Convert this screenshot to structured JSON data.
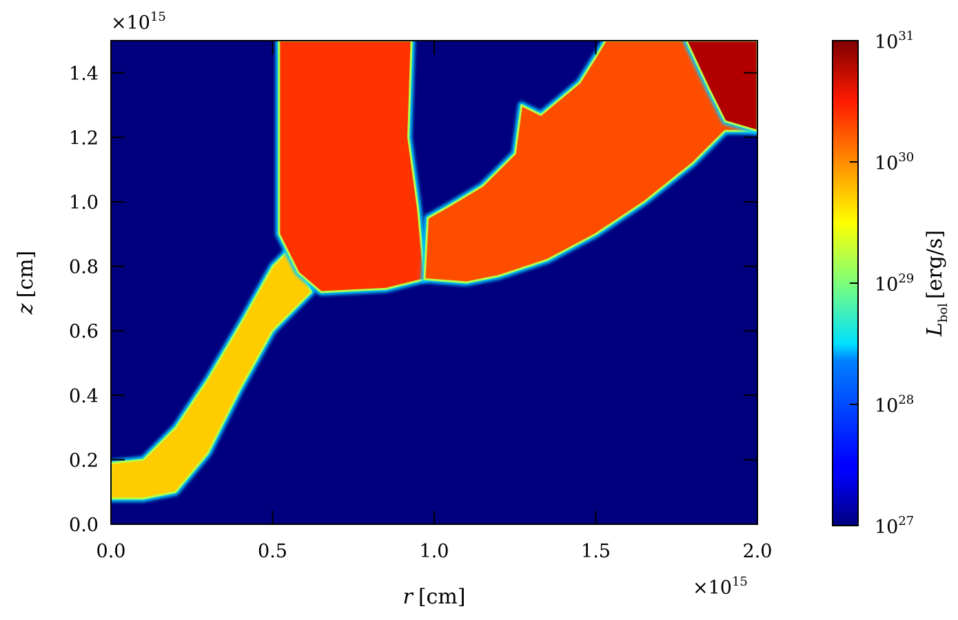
{
  "chart_data": {
    "type": "heatmap",
    "xlabel": {
      "var": "r",
      "unit": "[cm]"
    },
    "ylabel": {
      "var": "z",
      "unit": "[cm]"
    },
    "x_multiplier": {
      "base": "×10",
      "exp": "15"
    },
    "y_multiplier": {
      "base": "×10",
      "exp": "15"
    },
    "xlim": [
      0.0,
      2.0
    ],
    "ylim": [
      0.0,
      1.5
    ],
    "xticks": [
      "0.0",
      "0.5",
      "1.0",
      "1.5",
      "2.0"
    ],
    "yticks": [
      "0.0",
      "0.2",
      "0.4",
      "0.6",
      "0.8",
      "1.0",
      "1.2",
      "1.4"
    ],
    "colorbar": {
      "label": {
        "var": "L",
        "sub": "bol",
        "unit": "[erg/s]"
      },
      "scale": "log",
      "colormap": "jet",
      "range": [
        1e+27,
        1e+31
      ],
      "ticks": [
        {
          "base": "10",
          "exp": "27"
        },
        {
          "base": "10",
          "exp": "28"
        },
        {
          "base": "10",
          "exp": "29"
        },
        {
          "base": "10",
          "exp": "30"
        },
        {
          "base": "10",
          "exp": "31"
        }
      ]
    },
    "background_value_log10": 27.0,
    "regions": [
      {
        "name": "lower-jet",
        "log10_L": 29.7,
        "outline": [
          [
            0.0,
            0.19
          ],
          [
            0.1,
            0.2
          ],
          [
            0.2,
            0.3
          ],
          [
            0.3,
            0.45
          ],
          [
            0.4,
            0.62
          ],
          [
            0.5,
            0.8
          ],
          [
            0.55,
            0.85
          ],
          [
            0.62,
            0.72
          ],
          [
            0.5,
            0.6
          ],
          [
            0.4,
            0.42
          ],
          [
            0.3,
            0.22
          ],
          [
            0.2,
            0.1
          ],
          [
            0.1,
            0.08
          ],
          [
            0.0,
            0.08
          ]
        ]
      },
      {
        "name": "left-column",
        "log10_L": 30.3,
        "outline": [
          [
            0.52,
            1.5
          ],
          [
            0.93,
            1.5
          ],
          [
            0.92,
            1.2
          ],
          [
            0.95,
            0.98
          ],
          [
            0.97,
            0.76
          ],
          [
            0.85,
            0.73
          ],
          [
            0.65,
            0.72
          ],
          [
            0.58,
            0.78
          ],
          [
            0.52,
            0.9
          ],
          [
            0.52,
            1.2
          ]
        ]
      },
      {
        "name": "right-wing",
        "log10_L": 30.2,
        "outline": [
          [
            0.97,
            0.76
          ],
          [
            0.98,
            0.95
          ],
          [
            1.05,
            0.99
          ],
          [
            1.15,
            1.05
          ],
          [
            1.25,
            1.15
          ],
          [
            1.27,
            1.3
          ],
          [
            1.33,
            1.27
          ],
          [
            1.45,
            1.37
          ],
          [
            1.5,
            1.45
          ],
          [
            1.53,
            1.5
          ],
          [
            1.8,
            1.5
          ],
          [
            2.0,
            1.5
          ],
          [
            2.0,
            1.22
          ],
          [
            1.9,
            1.22
          ],
          [
            1.8,
            1.12
          ],
          [
            1.65,
            1.0
          ],
          [
            1.5,
            0.9
          ],
          [
            1.35,
            0.82
          ],
          [
            1.2,
            0.77
          ],
          [
            1.1,
            0.75
          ]
        ]
      },
      {
        "name": "upper-right-hot-spot",
        "log10_L": 30.8,
        "outline": [
          [
            1.78,
            1.5
          ],
          [
            2.0,
            1.5
          ],
          [
            2.0,
            1.22
          ],
          [
            1.9,
            1.25
          ],
          [
            1.85,
            1.35
          ]
        ]
      }
    ]
  }
}
